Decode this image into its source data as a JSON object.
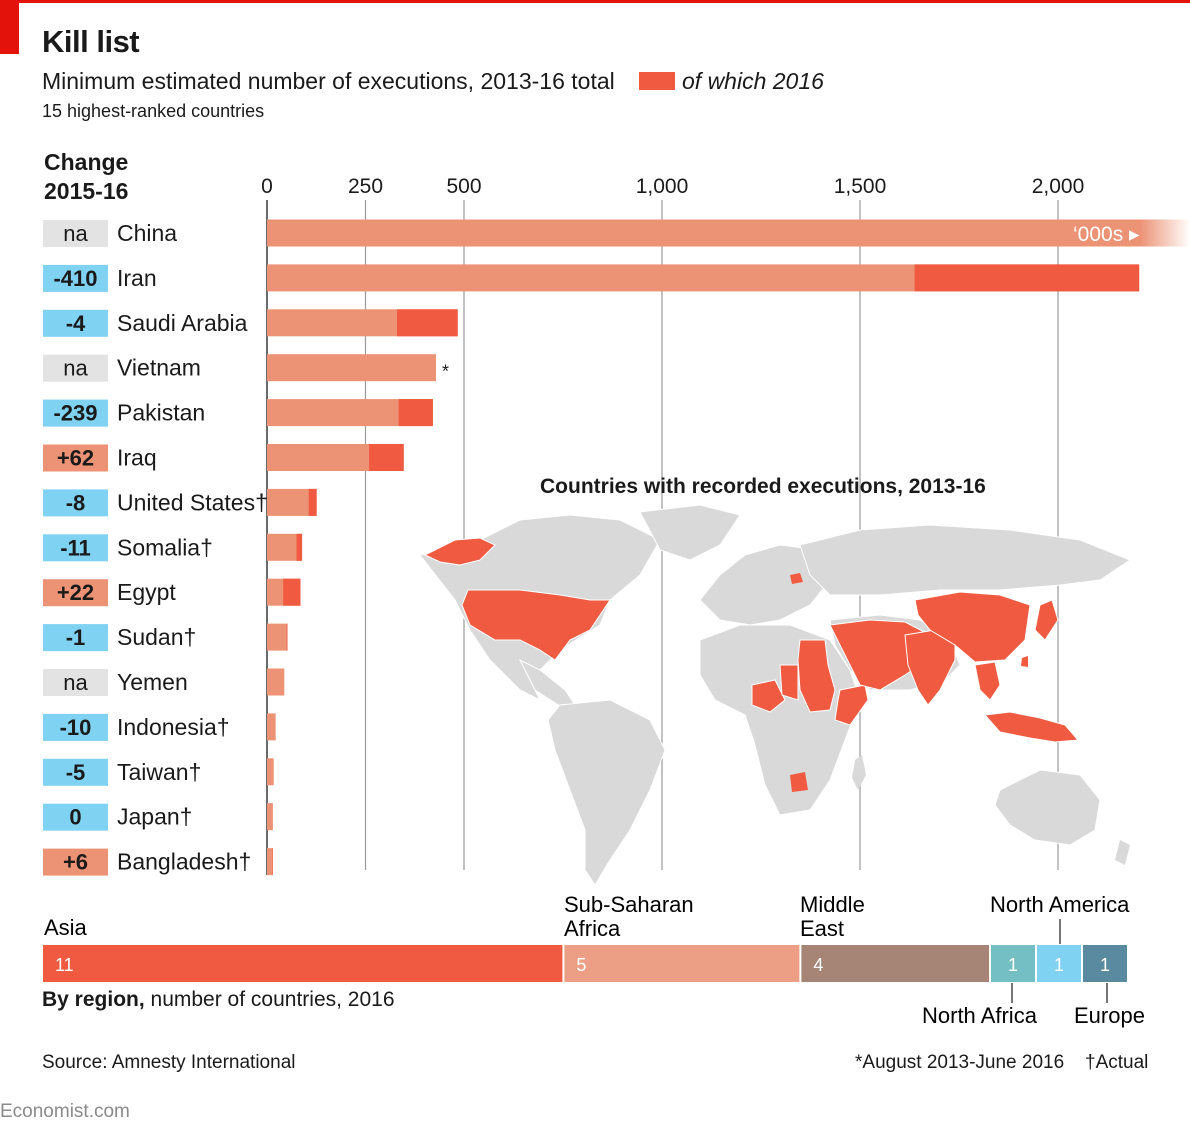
{
  "header": {
    "title": "Kill list",
    "subtitle": "Minimum estimated number of executions, 2013-16 total",
    "note": "15 highest-ranked countries",
    "legend_label": "of which 2016",
    "change_heading_line1": "Change",
    "change_heading_line2": "2015-16"
  },
  "colors": {
    "bar_total": "#ec9275",
    "bar_total_light": "#f0a58c",
    "bar_2016": "#ef5a40",
    "badge_negative": "#7fd2f2",
    "badge_positive": "#ec9275",
    "badge_na": "#e3e3e3",
    "map_highlight": "#ef5a40",
    "map_base": "#d9d9d9",
    "region_asia": "#ef5a40",
    "region_africa": "#ec9f85",
    "region_middle_east": "#a68476",
    "region_north_africa": "#74bfc4",
    "region_north_america": "#7fd2f2",
    "region_europe": "#5a8aa0"
  },
  "chart_data": [
    {
      "type": "bar",
      "orientation": "horizontal",
      "title": "Kill list",
      "subtitle": "Minimum estimated number of executions, 2013-16 total",
      "xlim": [
        0,
        2200
      ],
      "x_ticks": [
        0,
        250,
        500,
        1000,
        1500,
        2000
      ],
      "x_tick_labels": [
        "0",
        "250",
        "500",
        "1,000",
        "1,500",
        "2,000"
      ],
      "categories": [
        "China",
        "Iran",
        "Saudi Arabia",
        "Vietnam",
        "Pakistan",
        "Iraq",
        "United States†",
        "Somalia†",
        "Egypt",
        "Sudan†",
        "Yemen",
        "Indonesia†",
        "Taiwan†",
        "Japan†",
        "Bangladesh†"
      ],
      "change_2015_16": [
        "na",
        "-410",
        "-4",
        "na",
        "-239",
        "+62",
        "-8",
        "-11",
        "+22",
        "-1",
        "na",
        "-10",
        "-5",
        "0",
        "+6"
      ],
      "series": [
        {
          "name": "2013-16 total",
          "values": [
            2250,
            2205,
            484,
            429,
            421,
            347,
            126,
            89,
            85,
            52,
            44,
            22,
            17,
            15,
            15
          ]
        },
        {
          "name": "of which 2016",
          "values": [
            null,
            567,
            154,
            null,
            87,
            88,
            20,
            14,
            44,
            2,
            null,
            0,
            0,
            0,
            1
          ]
        }
      ],
      "annotations": {
        "china_label": "‘000s ▸",
        "vietnam_mark": "*"
      },
      "grid": true
    },
    {
      "type": "bar",
      "orientation": "stacked-horizontal",
      "title": "By region, number of countries, 2016",
      "categories": [
        "Asia",
        "Sub-Saharan Africa",
        "Middle East",
        "North Africa",
        "North America",
        "Europe"
      ],
      "values": [
        11,
        5,
        4,
        1,
        1,
        1
      ]
    }
  ],
  "region_labels": {
    "asia": "Asia",
    "africa_line1": "Sub-Saharan",
    "africa_line2": "Africa",
    "me_line1": "Middle",
    "me_line2": "East",
    "north_america": "North America",
    "north_africa": "North Africa",
    "europe": "Europe",
    "caption_bold": "By region,",
    "caption_rest": " number of countries, 2016"
  },
  "map": {
    "title": "Countries with recorded executions, 2013-16"
  },
  "footer": {
    "source": "Source: Amnesty International",
    "footnote_a": "*August 2013-June 2016",
    "footnote_b": "†Actual",
    "site": "Economist.com"
  }
}
